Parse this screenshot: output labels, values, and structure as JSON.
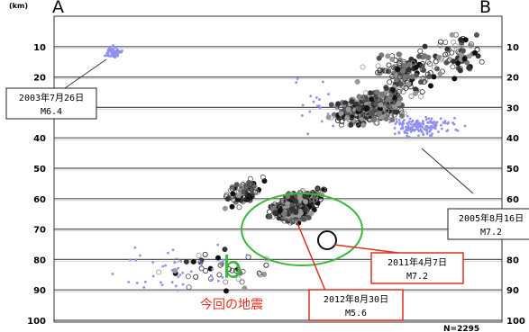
{
  "chart_data": {
    "type": "scatter",
    "y_axis": {
      "unit": "(km)",
      "ylim": [
        0,
        100
      ],
      "ticks": [
        10,
        20,
        30,
        40,
        50,
        60,
        70,
        80,
        90,
        100
      ],
      "inverted": true,
      "both_sides": true
    },
    "profile_ends": {
      "left": "A",
      "right": "B"
    },
    "grid": "horizontal",
    "count_label": "N=2295",
    "series": [
      {
        "color": "#222222",
        "style": "open circles (gray/black)",
        "description": "hypocenter cloud"
      },
      {
        "color": "#9090ee",
        "style": "small blue dots / crosses",
        "description": "hypocenter cloud (blue)"
      }
    ],
    "annotations": [
      {
        "id": "a2003",
        "date": "2003年7月26日",
        "mag": "M6.4",
        "border": "#222222"
      },
      {
        "id": "a2005",
        "date": "2005年8月16日",
        "mag": "M7.2",
        "border": "#222222"
      },
      {
        "id": "a2011",
        "date": "2011年4月7日",
        "mag": "M7.2",
        "border": "#e03020"
      },
      {
        "id": "a2012",
        "date": "2012年8月30日",
        "mag": "M5.6",
        "border": "#e03020"
      }
    ],
    "caption_red": "今回の地震",
    "region_label": "b",
    "region_color": "#3bb83b"
  }
}
